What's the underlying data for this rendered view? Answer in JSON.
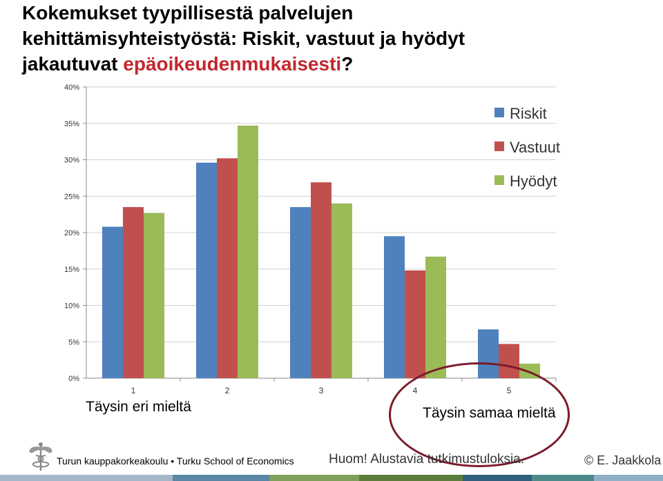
{
  "slide": {
    "title_line1": "Kokemukset tyypillisestä palvelujen",
    "title_line2": "kehittämisyhteistyöstä: Riskit, vastuut ja hyödyt",
    "title_line3_a": "jakautuvat ",
    "title_line3_b": "epäoikeudenmukaisesti",
    "title_line3_c": "?",
    "title_color": "#000000",
    "highlight_color": "#c0282e"
  },
  "scale_labels": {
    "left": "Täysin eri mieltä",
    "right": "Täysin samaa mieltä"
  },
  "footer": {
    "institution": "Turun kauppakorkeakoulu • Turku School of Economics",
    "note": "Huom! Alustavia tutkimustuloksia.",
    "copyright": "© E. Jaakkola"
  },
  "chart_data": {
    "type": "bar",
    "categories": [
      "1",
      "2",
      "3",
      "4",
      "5"
    ],
    "series": [
      {
        "name": "Riskit",
        "color": "#4f81bd",
        "values": [
          20.8,
          29.6,
          23.5,
          19.5,
          6.7
        ]
      },
      {
        "name": "Vastuut",
        "color": "#c0504d",
        "values": [
          23.5,
          30.2,
          26.9,
          14.8,
          4.7
        ]
      },
      {
        "name": "Hyödyt",
        "color": "#9bbb59",
        "values": [
          22.7,
          34.7,
          24.0,
          16.7,
          2.0
        ]
      }
    ],
    "yticks": [
      "0%",
      "5%",
      "10%",
      "15%",
      "20%",
      "25%",
      "30%",
      "35%",
      "40%"
    ],
    "ylim": [
      0,
      40
    ],
    "grid": true,
    "legend": "top-right"
  }
}
